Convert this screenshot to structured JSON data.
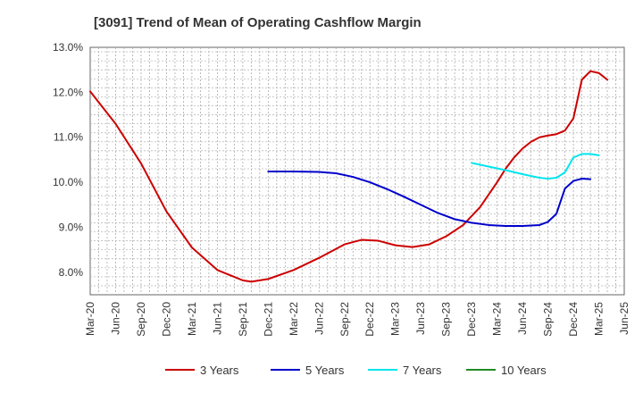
{
  "chart_data": {
    "type": "line",
    "title": "[3091]  Trend of Mean of Operating Cashflow Margin",
    "xlabel": "",
    "ylabel": "",
    "ylim": [
      7.5,
      13.0
    ],
    "y_ticks": [
      "8.0%",
      "9.0%",
      "10.0%",
      "11.0%",
      "12.0%",
      "13.0%"
    ],
    "y_tick_values": [
      8.0,
      9.0,
      10.0,
      11.0,
      12.0,
      13.0
    ],
    "x_tick_labels": [
      "Mar-20",
      "Jun-20",
      "Sep-20",
      "Dec-20",
      "Mar-21",
      "Jun-21",
      "Sep-21",
      "Dec-21",
      "Mar-22",
      "Jun-22",
      "Sep-22",
      "Dec-22",
      "Mar-23",
      "Jun-23",
      "Sep-23",
      "Dec-23",
      "Mar-24",
      "Jun-24",
      "Sep-24",
      "Dec-24",
      "Mar-25",
      "Jun-25"
    ],
    "x_range_months": [
      0,
      63
    ],
    "grid": true,
    "legend_position": "bottom",
    "series": [
      {
        "name": "3 Years",
        "color": "#cc0000",
        "points": [
          [
            0,
            12.02
          ],
          [
            3,
            11.3
          ],
          [
            6,
            10.42
          ],
          [
            9,
            9.35
          ],
          [
            12,
            8.55
          ],
          [
            15,
            8.05
          ],
          [
            18,
            7.82
          ],
          [
            19,
            7.79
          ],
          [
            21,
            7.85
          ],
          [
            24,
            8.05
          ],
          [
            27,
            8.32
          ],
          [
            30,
            8.62
          ],
          [
            32,
            8.72
          ],
          [
            34,
            8.7
          ],
          [
            36,
            8.6
          ],
          [
            38,
            8.56
          ],
          [
            40,
            8.62
          ],
          [
            42,
            8.8
          ],
          [
            44,
            9.05
          ],
          [
            46,
            9.45
          ],
          [
            48,
            10.0
          ],
          [
            49,
            10.3
          ],
          [
            50,
            10.55
          ],
          [
            51,
            10.75
          ],
          [
            52,
            10.9
          ],
          [
            53,
            11.0
          ],
          [
            54,
            11.04
          ],
          [
            55,
            11.07
          ],
          [
            56,
            11.15
          ],
          [
            57,
            11.42
          ],
          [
            58,
            12.28
          ],
          [
            59,
            12.47
          ],
          [
            60,
            12.43
          ],
          [
            61,
            12.28
          ]
        ]
      },
      {
        "name": "5 Years",
        "color": "#0000cc",
        "points": [
          [
            21,
            10.24
          ],
          [
            24,
            10.24
          ],
          [
            27,
            10.23
          ],
          [
            29,
            10.2
          ],
          [
            31,
            10.12
          ],
          [
            33,
            10.0
          ],
          [
            35,
            9.85
          ],
          [
            37,
            9.68
          ],
          [
            39,
            9.5
          ],
          [
            41,
            9.32
          ],
          [
            43,
            9.18
          ],
          [
            45,
            9.1
          ],
          [
            47,
            9.05
          ],
          [
            49,
            9.03
          ],
          [
            51,
            9.03
          ],
          [
            53,
            9.05
          ],
          [
            54,
            9.12
          ],
          [
            55,
            9.3
          ],
          [
            56,
            9.86
          ],
          [
            57,
            10.03
          ],
          [
            58,
            10.08
          ],
          [
            59,
            10.07
          ]
        ]
      },
      {
        "name": "7 Years",
        "color": "#00e5ee",
        "points": [
          [
            45,
            10.43
          ],
          [
            47,
            10.35
          ],
          [
            49,
            10.27
          ],
          [
            51,
            10.18
          ],
          [
            53,
            10.1
          ],
          [
            54,
            10.08
          ],
          [
            55,
            10.1
          ],
          [
            56,
            10.22
          ],
          [
            57,
            10.55
          ],
          [
            58,
            10.63
          ],
          [
            59,
            10.63
          ],
          [
            60,
            10.6
          ]
        ]
      },
      {
        "name": "10 Years",
        "color": "#228b22",
        "points": []
      }
    ]
  }
}
